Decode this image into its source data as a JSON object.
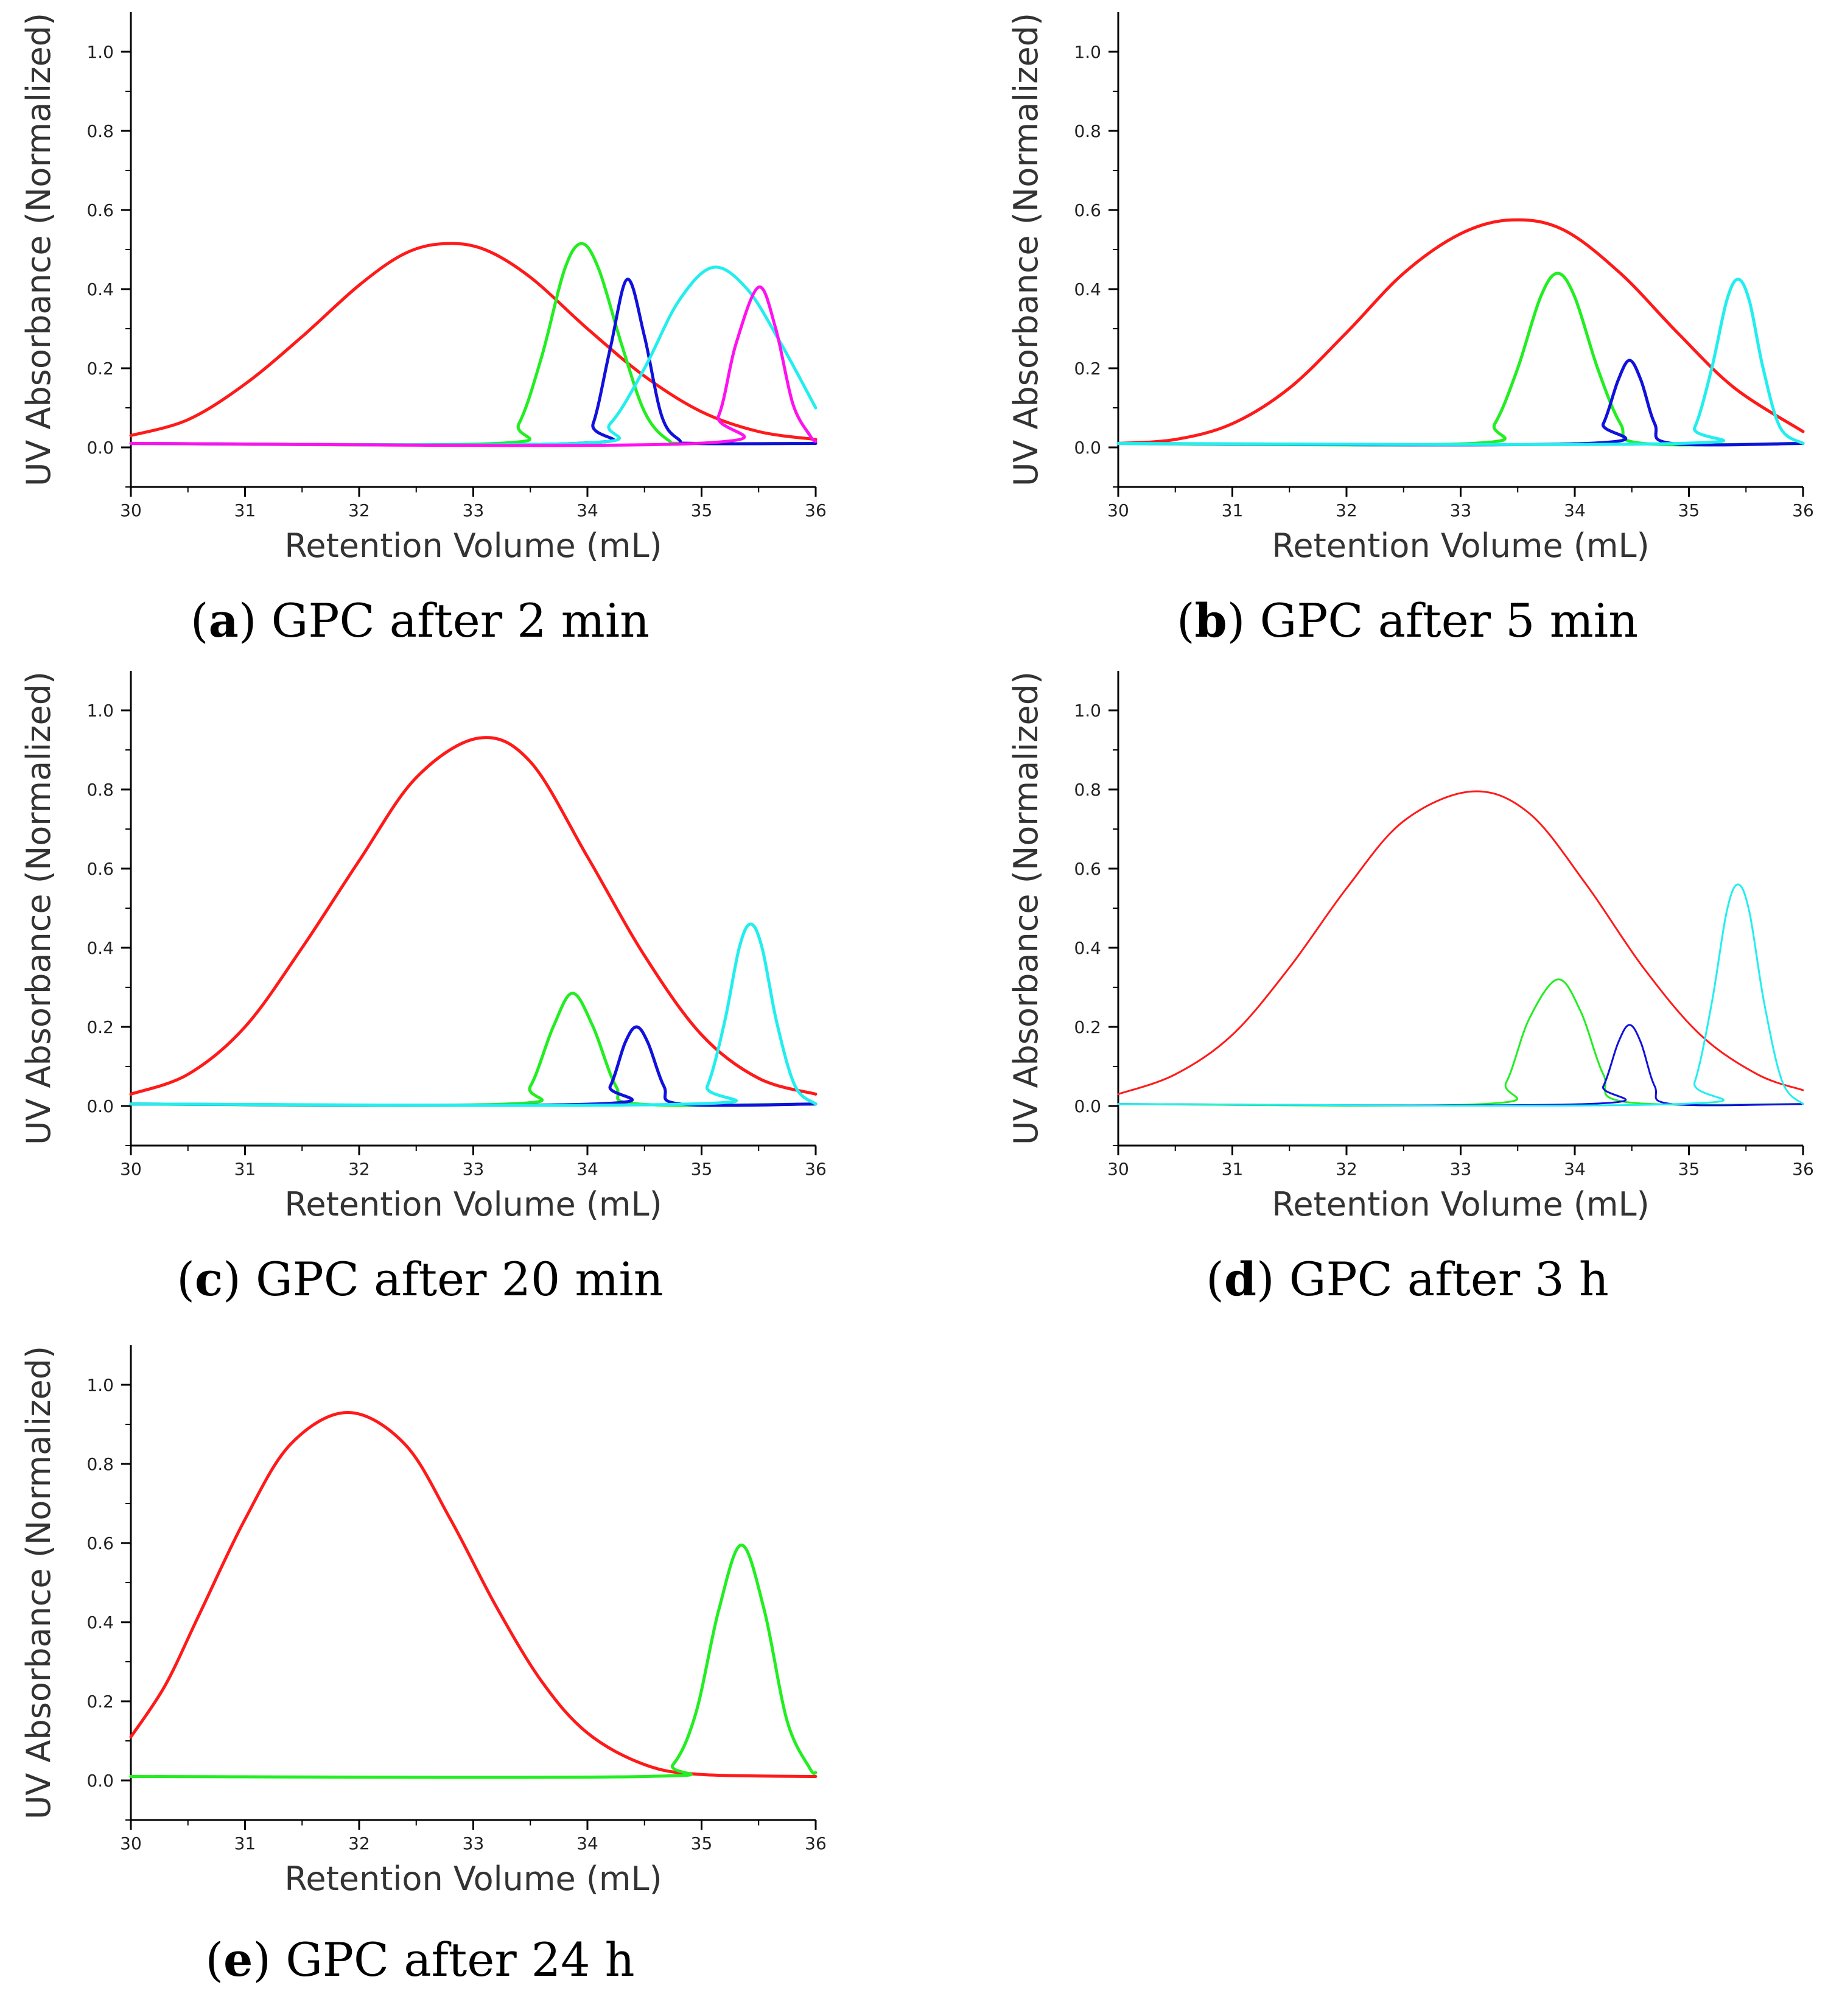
{
  "colors": {
    "red": "#ff1a1a",
    "green": "#22ee22",
    "blue": "#1111dd",
    "cyan": "#22eeee",
    "magenta": "#ff11ee",
    "axis": "#000000"
  },
  "chart_data": [
    {
      "id": "a",
      "type": "line",
      "caption_letter": "a",
      "caption_text": "GPC after 2 min",
      "xlabel": "Retention Volume (mL)",
      "ylabel": "UV Absorbance (Normalized)",
      "xlim": [
        30,
        36
      ],
      "ylim": [
        -0.1,
        1.1
      ],
      "xticks": [
        "30",
        "31",
        "32",
        "33",
        "34",
        "35",
        "36"
      ],
      "yticks": [
        "0.0",
        "0.2",
        "0.4",
        "0.6",
        "0.8",
        "1.0"
      ],
      "series": [
        {
          "color": "red",
          "width": 5,
          "points": [
            [
              30,
              0.03
            ],
            [
              30.5,
              0.07
            ],
            [
              31,
              0.16
            ],
            [
              31.5,
              0.28
            ],
            [
              32,
              0.41
            ],
            [
              32.4,
              0.49
            ],
            [
              32.75,
              0.515
            ],
            [
              33.1,
              0.5
            ],
            [
              33.5,
              0.43
            ],
            [
              34,
              0.3
            ],
            [
              34.5,
              0.18
            ],
            [
              35,
              0.09
            ],
            [
              35.5,
              0.04
            ],
            [
              36,
              0.02
            ]
          ]
        },
        {
          "color": "green",
          "width": 5,
          "points": [
            [
              30,
              0.01
            ],
            [
              33.2,
              0.01
            ],
            [
              33.4,
              0.06
            ],
            [
              33.6,
              0.23
            ],
            [
              33.8,
              0.45
            ],
            [
              33.95,
              0.515
            ],
            [
              34.1,
              0.45
            ],
            [
              34.3,
              0.26
            ],
            [
              34.5,
              0.09
            ],
            [
              34.7,
              0.02
            ],
            [
              34.9,
              0.01
            ],
            [
              36,
              0.01
            ]
          ]
        },
        {
          "color": "blue",
          "width": 5,
          "points": [
            [
              30,
              0.01
            ],
            [
              33.9,
              0.01
            ],
            [
              34.05,
              0.06
            ],
            [
              34.2,
              0.25
            ],
            [
              34.35,
              0.425
            ],
            [
              34.5,
              0.28
            ],
            [
              34.65,
              0.08
            ],
            [
              34.8,
              0.02
            ],
            [
              34.95,
              0.01
            ],
            [
              36,
              0.01
            ]
          ]
        },
        {
          "color": "cyan",
          "width": 5,
          "points": [
            [
              30,
              0.01
            ],
            [
              33.9,
              0.01
            ],
            [
              34.2,
              0.06
            ],
            [
              34.5,
              0.2
            ],
            [
              34.8,
              0.37
            ],
            [
              35.1,
              0.455
            ],
            [
              35.4,
              0.4
            ],
            [
              35.7,
              0.26
            ],
            [
              36,
              0.1
            ]
          ]
        },
        {
          "color": "magenta",
          "width": 5,
          "points": [
            [
              30,
              0.01
            ],
            [
              34.95,
              0.01
            ],
            [
              35.15,
              0.08
            ],
            [
              35.3,
              0.26
            ],
            [
              35.5,
              0.405
            ],
            [
              35.65,
              0.3
            ],
            [
              35.8,
              0.11
            ],
            [
              35.95,
              0.03
            ],
            [
              36,
              0.015
            ]
          ]
        }
      ]
    },
    {
      "id": "b",
      "type": "line",
      "caption_letter": "b",
      "caption_text": "GPC after 5 min",
      "xlabel": "Retention Volume (mL)",
      "ylabel": "UV Absorbance (Normalized)",
      "xlim": [
        30,
        36
      ],
      "ylim": [
        -0.1,
        1.1
      ],
      "xticks": [
        "30",
        "31",
        "32",
        "33",
        "34",
        "35",
        "36"
      ],
      "yticks": [
        "0.0",
        "0.2",
        "0.4",
        "0.6",
        "0.8",
        "1.0"
      ],
      "series": [
        {
          "color": "red",
          "width": 5,
          "points": [
            [
              30,
              0.01
            ],
            [
              30.5,
              0.02
            ],
            [
              31,
              0.06
            ],
            [
              31.5,
              0.15
            ],
            [
              32,
              0.29
            ],
            [
              32.5,
              0.44
            ],
            [
              33,
              0.54
            ],
            [
              33.45,
              0.575
            ],
            [
              33.9,
              0.55
            ],
            [
              34.4,
              0.44
            ],
            [
              34.9,
              0.29
            ],
            [
              35.4,
              0.15
            ],
            [
              36,
              0.04
            ]
          ]
        },
        {
          "color": "green",
          "width": 5,
          "points": [
            [
              30,
              0.01
            ],
            [
              33.1,
              0.01
            ],
            [
              33.3,
              0.06
            ],
            [
              33.5,
              0.2
            ],
            [
              33.7,
              0.38
            ],
            [
              33.85,
              0.44
            ],
            [
              34,
              0.38
            ],
            [
              34.2,
              0.2
            ],
            [
              34.4,
              0.06
            ],
            [
              34.6,
              0.01
            ],
            [
              36,
              0.01
            ]
          ]
        },
        {
          "color": "blue",
          "width": 5,
          "points": [
            [
              30,
              0.01
            ],
            [
              34.1,
              0.01
            ],
            [
              34.25,
              0.06
            ],
            [
              34.38,
              0.17
            ],
            [
              34.48,
              0.22
            ],
            [
              34.58,
              0.17
            ],
            [
              34.7,
              0.06
            ],
            [
              34.85,
              0.01
            ],
            [
              36,
              0.01
            ]
          ]
        },
        {
          "color": "cyan",
          "width": 5,
          "points": [
            [
              30,
              0.01
            ],
            [
              34.9,
              0.01
            ],
            [
              35.05,
              0.05
            ],
            [
              35.2,
              0.2
            ],
            [
              35.33,
              0.37
            ],
            [
              35.43,
              0.425
            ],
            [
              35.53,
              0.37
            ],
            [
              35.65,
              0.2
            ],
            [
              35.8,
              0.05
            ],
            [
              36,
              0.01
            ]
          ]
        }
      ]
    },
    {
      "id": "c",
      "type": "line",
      "caption_letter": "c",
      "caption_text": "GPC after 20 min",
      "xlabel": "Retention Volume (mL)",
      "ylabel": "UV Absorbance (Normalized)",
      "xlim": [
        30,
        36
      ],
      "ylim": [
        -0.1,
        1.1
      ],
      "xticks": [
        "30",
        "31",
        "32",
        "33",
        "34",
        "35",
        "36"
      ],
      "yticks": [
        "0.0",
        "0.2",
        "0.4",
        "0.6",
        "0.8",
        "1.0"
      ],
      "series": [
        {
          "color": "red",
          "width": 5,
          "points": [
            [
              30,
              0.03
            ],
            [
              30.5,
              0.08
            ],
            [
              31,
              0.2
            ],
            [
              31.5,
              0.4
            ],
            [
              32,
              0.62
            ],
            [
              32.5,
              0.83
            ],
            [
              33.05,
              0.93
            ],
            [
              33.5,
              0.87
            ],
            [
              34,
              0.63
            ],
            [
              34.5,
              0.38
            ],
            [
              35,
              0.18
            ],
            [
              35.5,
              0.07
            ],
            [
              36,
              0.03
            ]
          ]
        },
        {
          "color": "green",
          "width": 5,
          "points": [
            [
              30,
              0.005
            ],
            [
              33.3,
              0.005
            ],
            [
              33.5,
              0.05
            ],
            [
              33.7,
              0.2
            ],
            [
              33.87,
              0.285
            ],
            [
              34.05,
              0.2
            ],
            [
              34.25,
              0.05
            ],
            [
              34.45,
              0.005
            ],
            [
              36,
              0.005
            ]
          ]
        },
        {
          "color": "blue",
          "width": 5,
          "points": [
            [
              30,
              0.005
            ],
            [
              34.05,
              0.005
            ],
            [
              34.2,
              0.05
            ],
            [
              34.33,
              0.16
            ],
            [
              34.43,
              0.2
            ],
            [
              34.53,
              0.16
            ],
            [
              34.67,
              0.05
            ],
            [
              34.82,
              0.005
            ],
            [
              36,
              0.005
            ]
          ]
        },
        {
          "color": "cyan",
          "width": 5,
          "points": [
            [
              30,
              0.005
            ],
            [
              34.9,
              0.005
            ],
            [
              35.05,
              0.05
            ],
            [
              35.2,
              0.21
            ],
            [
              35.33,
              0.4
            ],
            [
              35.43,
              0.46
            ],
            [
              35.53,
              0.4
            ],
            [
              35.66,
              0.21
            ],
            [
              35.82,
              0.05
            ],
            [
              36,
              0.005
            ]
          ]
        }
      ]
    },
    {
      "id": "d",
      "type": "line",
      "caption_letter": "d",
      "caption_text": "GPC after 3 h",
      "xlabel": "Retention Volume (mL)",
      "ylabel": "UV Absorbance (Normalized)",
      "xlim": [
        30,
        36
      ],
      "ylim": [
        -0.1,
        1.1
      ],
      "xticks": [
        "30",
        "31",
        "32",
        "33",
        "34",
        "35",
        "36"
      ],
      "yticks": [
        "0.0",
        "0.2",
        "0.4",
        "0.6",
        "0.8",
        "1.0"
      ],
      "series": [
        {
          "color": "red",
          "width": 3,
          "points": [
            [
              30,
              0.03
            ],
            [
              30.5,
              0.08
            ],
            [
              31,
              0.18
            ],
            [
              31.5,
              0.35
            ],
            [
              32,
              0.55
            ],
            [
              32.5,
              0.72
            ],
            [
              33.1,
              0.795
            ],
            [
              33.6,
              0.74
            ],
            [
              34.1,
              0.56
            ],
            [
              34.6,
              0.35
            ],
            [
              35.1,
              0.18
            ],
            [
              35.6,
              0.08
            ],
            [
              36,
              0.04
            ]
          ]
        },
        {
          "color": "green",
          "width": 3,
          "points": [
            [
              30,
              0.005
            ],
            [
              33.2,
              0.005
            ],
            [
              33.4,
              0.06
            ],
            [
              33.6,
              0.22
            ],
            [
              33.85,
              0.32
            ],
            [
              34.05,
              0.24
            ],
            [
              34.25,
              0.08
            ],
            [
              34.45,
              0.01
            ],
            [
              36,
              0.005
            ]
          ]
        },
        {
          "color": "blue",
          "width": 3,
          "points": [
            [
              30,
              0.005
            ],
            [
              34.1,
              0.005
            ],
            [
              34.25,
              0.05
            ],
            [
              34.38,
              0.16
            ],
            [
              34.48,
              0.205
            ],
            [
              34.58,
              0.16
            ],
            [
              34.7,
              0.05
            ],
            [
              34.85,
              0.005
            ],
            [
              36,
              0.005
            ]
          ]
        },
        {
          "color": "cyan",
          "width": 3,
          "points": [
            [
              30,
              0.005
            ],
            [
              34.9,
              0.005
            ],
            [
              35.05,
              0.06
            ],
            [
              35.2,
              0.26
            ],
            [
              35.33,
              0.49
            ],
            [
              35.43,
              0.56
            ],
            [
              35.53,
              0.49
            ],
            [
              35.66,
              0.26
            ],
            [
              35.82,
              0.06
            ],
            [
              36,
              0.005
            ]
          ]
        }
      ]
    },
    {
      "id": "e",
      "type": "line",
      "caption_letter": "e",
      "caption_text": "GPC after 24 h",
      "xlabel": "Retention Volume (mL)",
      "ylabel": "UV Absorbance (Normalized)",
      "xlim": [
        30,
        36
      ],
      "ylim": [
        -0.1,
        1.1
      ],
      "xticks": [
        "30",
        "31",
        "32",
        "33",
        "34",
        "35",
        "36"
      ],
      "yticks": [
        "0.0",
        "0.2",
        "0.4",
        "0.6",
        "0.8",
        "1.0"
      ],
      "series": [
        {
          "color": "red",
          "width": 5,
          "points": [
            [
              30,
              0.11
            ],
            [
              30.3,
              0.24
            ],
            [
              30.6,
              0.42
            ],
            [
              31,
              0.66
            ],
            [
              31.4,
              0.85
            ],
            [
              31.9,
              0.93
            ],
            [
              32.4,
              0.85
            ],
            [
              32.8,
              0.66
            ],
            [
              33.2,
              0.44
            ],
            [
              33.6,
              0.25
            ],
            [
              34,
              0.12
            ],
            [
              34.5,
              0.04
            ],
            [
              35,
              0.015
            ],
            [
              36,
              0.01
            ]
          ]
        },
        {
          "color": "green",
          "width": 5,
          "points": [
            [
              30,
              0.01
            ],
            [
              34.5,
              0.01
            ],
            [
              34.75,
              0.04
            ],
            [
              34.95,
              0.17
            ],
            [
              35.15,
              0.43
            ],
            [
              35.35,
              0.595
            ],
            [
              35.55,
              0.43
            ],
            [
              35.75,
              0.15
            ],
            [
              35.95,
              0.03
            ],
            [
              36,
              0.02
            ]
          ]
        }
      ]
    }
  ]
}
